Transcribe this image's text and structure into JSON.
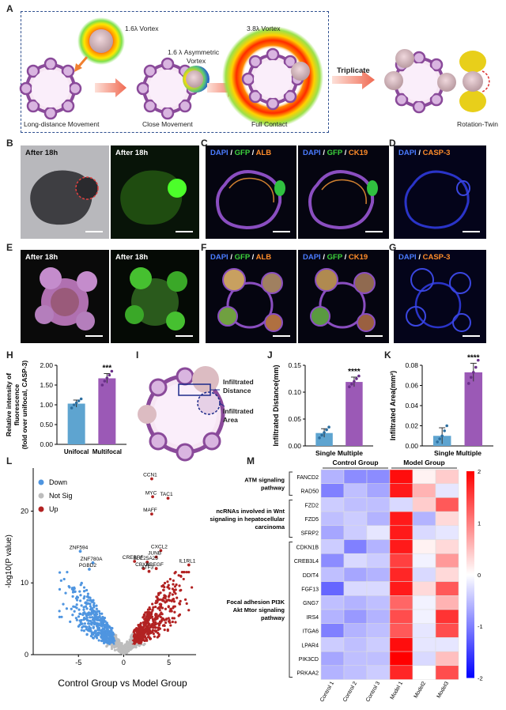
{
  "panel_letters": {
    "A": "A",
    "B": "B",
    "C": "C",
    "D": "D",
    "E": "E",
    "F": "F",
    "G": "G",
    "H": "H",
    "I": "I",
    "J": "J",
    "K": "K",
    "L": "L",
    "M": "M"
  },
  "panelA": {
    "vortex1": "1.6λ Vortex",
    "vortex_asym_1": "1.6 λ Asymmetric",
    "vortex_asym_2": "Vortex",
    "vortex3": "3.8λ Vortex",
    "triplicate": "Triplicate",
    "step1": "Long-distance Movement",
    "step2": "Close Movement",
    "step3": "Full Contact",
    "step4": "Rotation-Twin"
  },
  "micro": {
    "after18h": "After 18h",
    "dapi": "DAPI",
    "sep": " / ",
    "gfp": "GFP",
    "alb": "ALB",
    "ck19": "CK19",
    "casp3": "CASP-3"
  },
  "panelI": {
    "dist1": "Infiltrated",
    "dist2": "Distance",
    "area1": "Infiltrated",
    "area2": "Area"
  },
  "chart_data": [
    {
      "type": "bar",
      "panel": "H",
      "categories": [
        "Unifocal",
        "Multifocal"
      ],
      "values": [
        1.03,
        1.67
      ],
      "errors": [
        0.09,
        0.12
      ],
      "points": [
        [
          0.92,
          1.0,
          1.05,
          1.1,
          1.15
        ],
        [
          1.5,
          1.6,
          1.68,
          1.75,
          1.85
        ]
      ],
      "ylabel_1": "Relative intensity of",
      "ylabel_2": "fluorescence",
      "ylabel_3": "(fold over unifocal,  CASP-3)",
      "ylim": [
        0,
        2.0
      ],
      "yticks": [
        "0.00",
        "0.50",
        "1.00",
        "1.50",
        "2.00"
      ],
      "significance": "***",
      "colors": [
        "#5ea4d0",
        "#9b59b6"
      ]
    },
    {
      "type": "bar",
      "panel": "J",
      "categories": [
        "Single",
        "Multiple"
      ],
      "values": [
        0.024,
        0.119
      ],
      "errors": [
        0.008,
        0.009
      ],
      "points": [
        [
          0.015,
          0.02,
          0.025,
          0.03,
          0.035
        ],
        [
          0.11,
          0.115,
          0.12,
          0.125,
          0.13
        ]
      ],
      "ylabel": "Infiltrated Distance(mm)",
      "ylim": [
        0,
        0.15
      ],
      "yticks": [
        "0.00",
        "0.05",
        "0.10",
        "0.15"
      ],
      "significance": "****",
      "colors": [
        "#5ea4d0",
        "#9b59b6"
      ]
    },
    {
      "type": "bar",
      "panel": "K",
      "categories": [
        "Single",
        "Multiple"
      ],
      "values": [
        0.01,
        0.073
      ],
      "errors": [
        0.008,
        0.009
      ],
      "points": [
        [
          0.004,
          0.007,
          0.01,
          0.015,
          0.02
        ],
        [
          0.062,
          0.068,
          0.073,
          0.078,
          0.085
        ]
      ],
      "ylabel": "Infiltrated Area(mm²)",
      "ylim": [
        0,
        0.08
      ],
      "yticks": [
        "0.00",
        "0.02",
        "0.04",
        "0.06",
        "0.08"
      ],
      "significance": "****",
      "colors": [
        "#5ea4d0",
        "#9b59b6"
      ]
    },
    {
      "type": "scatter",
      "panel": "L",
      "xlabel": "Control Group vs Model Group",
      "ylabel": "-log10(P value)",
      "xlim": [
        -10,
        8
      ],
      "ylim": [
        0,
        26
      ],
      "xticks": [
        "-5",
        "0",
        "5"
      ],
      "yticks": [
        "0",
        "10",
        "20"
      ],
      "legend": [
        "Down",
        "Not Sig",
        "Up"
      ],
      "legend_colors": [
        "#4f95e0",
        "#bdbdbd",
        "#b22222"
      ],
      "labeled_genes": [
        {
          "name": "CCN1",
          "x": 3.1,
          "y": 24.5
        },
        {
          "name": "MYC",
          "x": 3.2,
          "y": 22.0
        },
        {
          "name": "TAC1",
          "x": 4.9,
          "y": 21.8
        },
        {
          "name": "MAFF",
          "x": 3.1,
          "y": 19.6
        },
        {
          "name": "CXCL2",
          "x": 4.1,
          "y": 14.5
        },
        {
          "name": "JUNB",
          "x": 3.6,
          "y": 13.6
        },
        {
          "name": "IL1RL1",
          "x": 7.2,
          "y": 12.5
        },
        {
          "name": "CREBRF",
          "x": 1.2,
          "y": 13.0
        },
        {
          "name": "SLC25A25",
          "x": 2.6,
          "y": 12.9
        },
        {
          "name": "CBX4",
          "x": 2.2,
          "y": 12.0
        },
        {
          "name": "HBEGF",
          "x": 3.6,
          "y": 12.0
        },
        {
          "name": "ATF3",
          "x": 2.8,
          "y": 11.6
        },
        {
          "name": "ZNF594",
          "x": -4.8,
          "y": 14.4
        },
        {
          "name": "ZNF780A",
          "x": -3.4,
          "y": 12.8
        },
        {
          "name": "PGBD2",
          "x": -3.8,
          "y": 11.9
        }
      ]
    },
    {
      "type": "heatmap",
      "panel": "M",
      "col_groups": [
        "Control Group",
        "Model Group"
      ],
      "columns": [
        "Control 1",
        "Control 2",
        "Control 3",
        "Model 1",
        "Model2",
        "Model3"
      ],
      "rows": [
        "FANCD2",
        "RAD50",
        "FZD2",
        "FZD5",
        "SFRP2",
        "CDKN1B",
        "CREB3L4",
        "DDIT4",
        "FGF13",
        "GNG7",
        "IRS4",
        "ITGA6",
        "LPAR4",
        "PIK3CD",
        "PRKAA2"
      ],
      "row_groups": [
        {
          "label_1": "ATM signaling",
          "label_2": "pathway",
          "label_3": "",
          "start": 0,
          "end": 1
        },
        {
          "label_1": "ncRNAs involved in Wnt",
          "label_2": "signaling in hepatocellular",
          "label_3": "carcinoma",
          "start": 2,
          "end": 4
        },
        {
          "label_1": "Focal adhesion PI3K",
          "label_2": "Akt Mtor signaling",
          "label_3": "pathway",
          "start": 5,
          "end": 14
        }
      ],
      "values": [
        [
          -0.6,
          -0.9,
          -0.9,
          1.9,
          0.1,
          0.4
        ],
        [
          -1.0,
          -0.5,
          -0.7,
          1.8,
          0.6,
          -0.2
        ],
        [
          -0.4,
          -0.5,
          -0.5,
          -0.3,
          0.4,
          1.3
        ],
        [
          -0.5,
          -0.4,
          -0.6,
          1.8,
          -0.6,
          0.3
        ],
        [
          -0.7,
          -0.4,
          -0.2,
          1.8,
          -0.3,
          -0.2
        ],
        [
          -0.4,
          -1.0,
          -0.6,
          1.8,
          0.1,
          0.3
        ],
        [
          -0.9,
          -0.3,
          -0.4,
          1.5,
          -0.1,
          0.8
        ],
        [
          -0.5,
          -0.7,
          -0.6,
          1.7,
          -0.3,
          0.3
        ],
        [
          -1.2,
          -0.3,
          -0.3,
          1.8,
          0.3,
          1.3
        ],
        [
          -0.5,
          -0.6,
          -0.5,
          1.2,
          -0.1,
          0.6
        ],
        [
          -0.6,
          -0.8,
          -0.6,
          1.4,
          -0.1,
          1.6
        ],
        [
          -1.0,
          -0.6,
          -0.5,
          1.3,
          -0.2,
          1.4
        ],
        [
          -0.4,
          -0.5,
          -0.4,
          1.9,
          -0.2,
          -0.2
        ],
        [
          -0.7,
          -0.5,
          -0.5,
          2.0,
          -0.3,
          0.5
        ],
        [
          -0.6,
          -0.5,
          -0.4,
          1.7,
          0.0,
          1.4
        ]
      ],
      "scale": [
        -2,
        2
      ],
      "scale_ticks": [
        "2",
        "1",
        "0",
        "-1",
        "-2"
      ],
      "colors": {
        "low": "#0000ff",
        "mid": "#ffffff",
        "high": "#ff0000"
      }
    }
  ]
}
